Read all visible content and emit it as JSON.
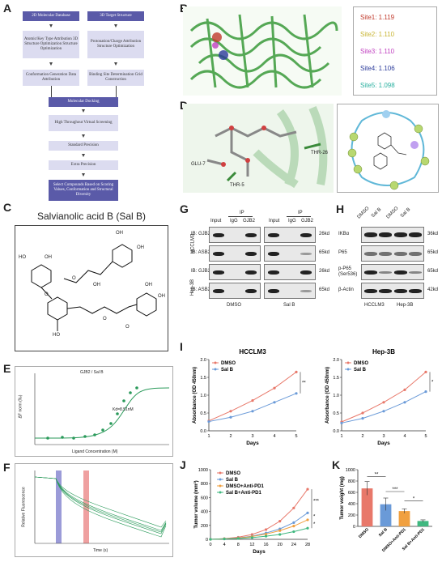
{
  "panels": {
    "a": "A",
    "b": "B",
    "c": "C",
    "d": "D",
    "e": "E",
    "f": "F",
    "g": "G",
    "h": "H",
    "i": "I",
    "j": "J",
    "k": "K"
  },
  "panelA": {
    "db_left": "2D Molecular Database",
    "db_right": "3D Target Structure",
    "left_1": "Atomic/Key Type Attribution 3D Structure Optimization Structure Optimization",
    "right_1": "Protonation/Charge Attribution Structure Optimization",
    "left_2": "Conformation Generation Data Attribution",
    "right_2": "Binding Site Determination Grid Construction",
    "docking": "Molecular Docking",
    "step1": "High Throughout Virtual Screening",
    "step2": "Standard Precision",
    "step3": "Extra Precision",
    "step4": "Select Compounds Based on Scoring Values, Conformation and Structural Diversity"
  },
  "panelB": {
    "sites": [
      {
        "label": "Site1: 1.119",
        "color": "#c0392b"
      },
      {
        "label": "Site2: 1.110",
        "color": "#c8b432"
      },
      {
        "label": "Site3: 1.110",
        "color": "#c040c0"
      },
      {
        "label": "Site4: 1.106",
        "color": "#2a3a9a"
      },
      {
        "label": "Site5: 1.098",
        "color": "#2ab0a0"
      }
    ]
  },
  "panelC": {
    "title": "Salvianolic acid B (Sal B)",
    "groups": [
      "HO",
      "OH",
      "OH",
      "HO",
      "O",
      "O",
      "OH",
      "O",
      "O",
      "OH",
      "OH",
      "O",
      "HO",
      "O",
      "O",
      "OH"
    ]
  },
  "panelD": {
    "residues": [
      "GLU-7",
      "THR-5",
      "THR-26"
    ],
    "distances": [
      "2.2",
      "2.5",
      "2.7",
      "1.8"
    ]
  },
  "panelE": {
    "title": "GJB2 / Sal B",
    "annotation": "Kd=8.51nM",
    "xlabel": "Ligand Concentration (M)",
    "ylabel": "ΔF norm (‰)"
  },
  "panelF": {
    "xlabel": "Time (s)",
    "ylabel": "Relative Fluorescence"
  },
  "panelG": {
    "ip": "IP",
    "lanes": [
      "Input",
      "IgG",
      "GJB2",
      "Input",
      "IgG",
      "GJB2"
    ],
    "rows": [
      "IB: GJB2",
      "IB: ASB2",
      "IB: GJB2",
      "IB: ASB2"
    ],
    "cells": [
      "HCCLM3",
      "Hep-3B"
    ],
    "kd": [
      "26kd",
      "65kd",
      "26kd",
      "65kd"
    ],
    "treat": [
      "DMSO",
      "Sal B"
    ]
  },
  "panelH": {
    "lanes": [
      "DMSO",
      "Sal B",
      "DMSO",
      "Sal B"
    ],
    "rows": [
      "IKBα",
      "P65",
      "p-P65 (Ser536)",
      "β-Actin"
    ],
    "kd": [
      "36kd",
      "65kd",
      "65kd",
      "42kd"
    ],
    "cells": [
      "HCCLM3",
      "Hep-3B"
    ]
  },
  "colors": {
    "dmso": "#e8786a",
    "salb": "#6a9ad8",
    "dmso_pd1": "#f0a040",
    "salb_pd1": "#40b880",
    "flow_dark": "#5a5aa8",
    "flow_light": "#dcdcf0",
    "curve": "#2a9a5a"
  },
  "chart_data": [
    {
      "id": "I-left",
      "type": "line",
      "title": "HCCLM3",
      "xlabel": "Days",
      "ylabel": "Absorbance (OD 450nm)",
      "x": [
        1,
        2,
        3,
        4,
        5
      ],
      "ylim": [
        0.0,
        2.0
      ],
      "yticks": [
        "0.0",
        "0.5",
        "1.0",
        "1.5",
        "2.0"
      ],
      "series": [
        {
          "name": "DMSO",
          "values": [
            0.28,
            0.55,
            0.85,
            1.2,
            1.65
          ]
        },
        {
          "name": "Sal B",
          "values": [
            0.26,
            0.38,
            0.55,
            0.8,
            1.05
          ]
        }
      ],
      "significance": "**"
    },
    {
      "id": "I-right",
      "type": "line",
      "title": "Hep-3B",
      "xlabel": "Days",
      "ylabel": "Absorbance (OD 450nm)",
      "x": [
        1,
        2,
        3,
        4,
        5
      ],
      "ylim": [
        0.0,
        2.0
      ],
      "yticks": [
        "0.0",
        "0.5",
        "1.0",
        "1.5",
        "2.0"
      ],
      "series": [
        {
          "name": "DMSO",
          "values": [
            0.25,
            0.5,
            0.8,
            1.15,
            1.65
          ]
        },
        {
          "name": "Sal B",
          "values": [
            0.22,
            0.35,
            0.55,
            0.8,
            1.1
          ]
        }
      ],
      "significance": "*"
    },
    {
      "id": "J",
      "type": "line",
      "xlabel": "Days",
      "ylabel": "Tumor volume (mm³)",
      "x": [
        0,
        4,
        8,
        12,
        16,
        20,
        24,
        28
      ],
      "ylim": [
        0,
        1000
      ],
      "yticks": [
        "0",
        "200",
        "400",
        "600",
        "800",
        "1000"
      ],
      "series": [
        {
          "name": "DMSO",
          "values": [
            0,
            10,
            30,
            70,
            140,
            260,
            450,
            720
          ]
        },
        {
          "name": "Sal B",
          "values": [
            0,
            8,
            20,
            45,
            90,
            150,
            240,
            380
          ]
        },
        {
          "name": "DMSO+Anti-PD1",
          "values": [
            0,
            7,
            18,
            40,
            75,
            125,
            190,
            280
          ]
        },
        {
          "name": "Sal B+Anti-PD1",
          "values": [
            0,
            5,
            12,
            25,
            45,
            70,
            110,
            160
          ]
        }
      ],
      "significance": [
        "***",
        "*",
        "*"
      ]
    },
    {
      "id": "K",
      "type": "bar",
      "ylabel": "Tumor weight (mg)",
      "categories": [
        "DMSO",
        "Sal B",
        "DMSO+Anti-PD1",
        "Sal B+Anti-PD1"
      ],
      "values": [
        670,
        390,
        270,
        95
      ],
      "errors": [
        120,
        110,
        40,
        20
      ],
      "ylim": [
        0,
        1000
      ],
      "yticks": [
        "0",
        "200",
        "400",
        "600",
        "800",
        "1000"
      ],
      "significance": [
        "**",
        "***",
        "*"
      ]
    }
  ]
}
